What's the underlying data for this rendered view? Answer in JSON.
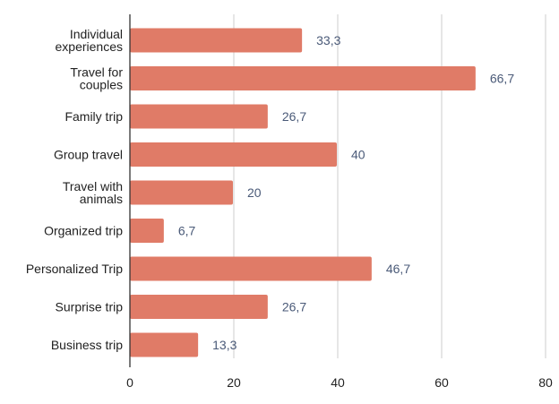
{
  "chart_data": {
    "type": "bar",
    "orientation": "horizontal",
    "categories": [
      [
        "Individual",
        "experiences"
      ],
      [
        "Travel for",
        "couples"
      ],
      [
        "Family trip"
      ],
      [
        "Group travel"
      ],
      [
        "Travel with",
        "animals"
      ],
      [
        "Organized trip"
      ],
      [
        "Personalized Trip"
      ],
      [
        "Surprise trip"
      ],
      [
        "Business trip"
      ]
    ],
    "values": [
      33.3,
      66.7,
      26.7,
      40,
      20,
      6.7,
      46.7,
      26.7,
      13.3
    ],
    "value_labels": [
      "33,3",
      "66,7",
      "26,7",
      "40",
      "20",
      "6,7",
      "46,7",
      "26,7",
      "13,3"
    ],
    "xlim": [
      0,
      80
    ],
    "xticks": [
      0,
      20,
      40,
      60,
      80
    ],
    "grid": true,
    "bar_color": "#e07b67",
    "grid_color": "#cccccc",
    "axis_color": "#333333"
  }
}
